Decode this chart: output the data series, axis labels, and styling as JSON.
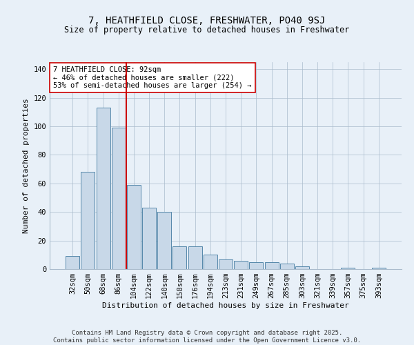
{
  "title": "7, HEATHFIELD CLOSE, FRESHWATER, PO40 9SJ",
  "subtitle": "Size of property relative to detached houses in Freshwater",
  "xlabel": "Distribution of detached houses by size in Freshwater",
  "ylabel": "Number of detached properties",
  "categories": [
    "32sqm",
    "50sqm",
    "68sqm",
    "86sqm",
    "104sqm",
    "122sqm",
    "140sqm",
    "158sqm",
    "176sqm",
    "194sqm",
    "213sqm",
    "231sqm",
    "249sqm",
    "267sqm",
    "285sqm",
    "303sqm",
    "321sqm",
    "339sqm",
    "357sqm",
    "375sqm",
    "393sqm"
  ],
  "values": [
    9,
    68,
    113,
    99,
    59,
    43,
    40,
    16,
    16,
    10,
    7,
    6,
    5,
    5,
    4,
    2,
    0,
    0,
    1,
    0,
    1
  ],
  "bar_color": "#c8d8e8",
  "bar_edge_color": "#5588aa",
  "vline_x_index": 3,
  "vline_color": "#cc0000",
  "annotation_line1": "7 HEATHFIELD CLOSE: 92sqm",
  "annotation_line2": "← 46% of detached houses are smaller (222)",
  "annotation_line3": "53% of semi-detached houses are larger (254) →",
  "annotation_box_color": "#ffffff",
  "annotation_box_edge": "#cc0000",
  "bg_color": "#e8f0f8",
  "footer_line1": "Contains HM Land Registry data © Crown copyright and database right 2025.",
  "footer_line2": "Contains public sector information licensed under the Open Government Licence v3.0.",
  "ylim": [
    0,
    145
  ],
  "yticks": [
    0,
    20,
    40,
    60,
    80,
    100,
    120,
    140
  ],
  "title_fontsize": 10,
  "subtitle_fontsize": 8.5,
  "ylabel_fontsize": 8,
  "xlabel_fontsize": 8,
  "tick_fontsize": 7.5,
  "annot_fontsize": 7.5,
  "footer_fontsize": 6.5
}
